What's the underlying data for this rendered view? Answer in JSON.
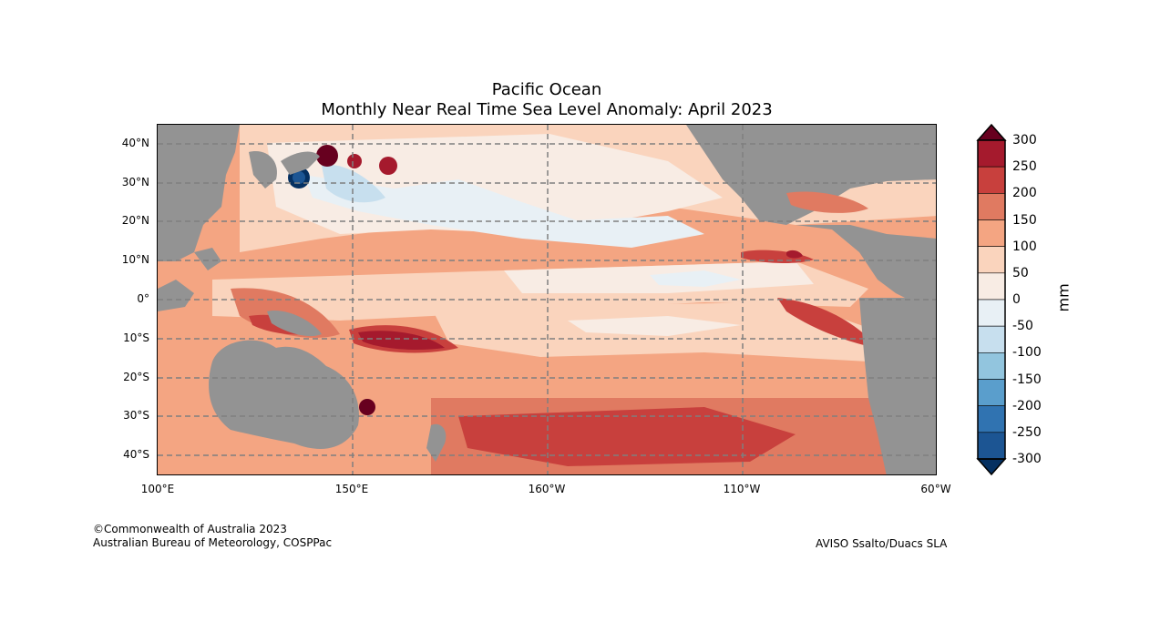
{
  "title": {
    "line1": "Pacific Ocean",
    "line2": "Monthly Near Real Time Sea Level Anomaly: April 2023"
  },
  "map": {
    "lat_labels": [
      "40°N",
      "30°N",
      "20°N",
      "10°N",
      "0°",
      "10°S",
      "20°S",
      "30°S",
      "40°S"
    ],
    "lon_labels": [
      "100°E",
      "150°E",
      "160°W",
      "110°W",
      "60°W"
    ],
    "land_color": "#939393",
    "grid_color": "#7f7f7f"
  },
  "colorbar": {
    "ticks": [
      "300",
      "250",
      "200",
      "150",
      "100",
      "50",
      "0",
      "-50",
      "-100",
      "-150",
      "-200",
      "-250",
      "-300"
    ],
    "unit": "mm",
    "colors": [
      "#67001f",
      "#a51a2d",
      "#c8403d",
      "#e07a61",
      "#f4a582",
      "#fad4bd",
      "#f8ece4",
      "#e8f0f5",
      "#c7dfee",
      "#92c5de",
      "#5a9ecc",
      "#3073b1",
      "#1c5593",
      "#053061"
    ]
  },
  "credits": {
    "copyright": "©Commonwealth of Australia 2023",
    "org": "Australian Bureau of Meteorology, COSPPac",
    "source": "AVISO Ssalto/Duacs SLA"
  }
}
